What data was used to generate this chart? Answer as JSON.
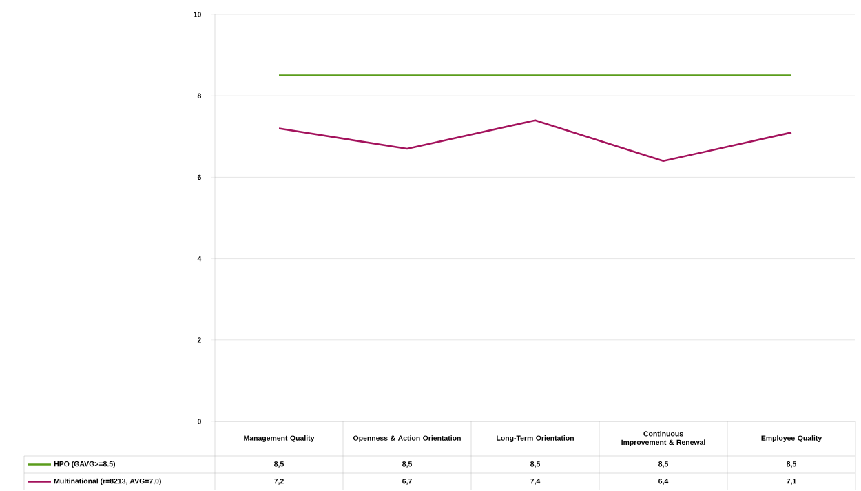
{
  "chart_data": {
    "type": "line",
    "categories": [
      "Management Quality",
      "Openness & Action Orientation",
      "Long-Term Orientation",
      "Continuous Improvement & Renewal",
      "Employee Quality"
    ],
    "series": [
      {
        "name": "HPO (GAVG>=8.5)",
        "color": "#5b9d1c",
        "values": [
          8.5,
          8.5,
          8.5,
          8.5,
          8.5
        ],
        "value_labels": [
          "8,5",
          "8,5",
          "8,5",
          "8,5",
          "8,5"
        ]
      },
      {
        "name": "Multinational (r=8213, AVG=7,0)",
        "color": "#a3125c",
        "values": [
          7.2,
          6.7,
          7.4,
          6.4,
          7.1
        ],
        "value_labels": [
          "7,2",
          "6,7",
          "7,4",
          "6,4",
          "7,1"
        ]
      }
    ],
    "ylim": [
      0,
      10
    ],
    "yticks": [
      0,
      2,
      4,
      6,
      8,
      10
    ],
    "grid": "y",
    "legend": "bottom",
    "marker": "none",
    "line_style": "solid"
  }
}
